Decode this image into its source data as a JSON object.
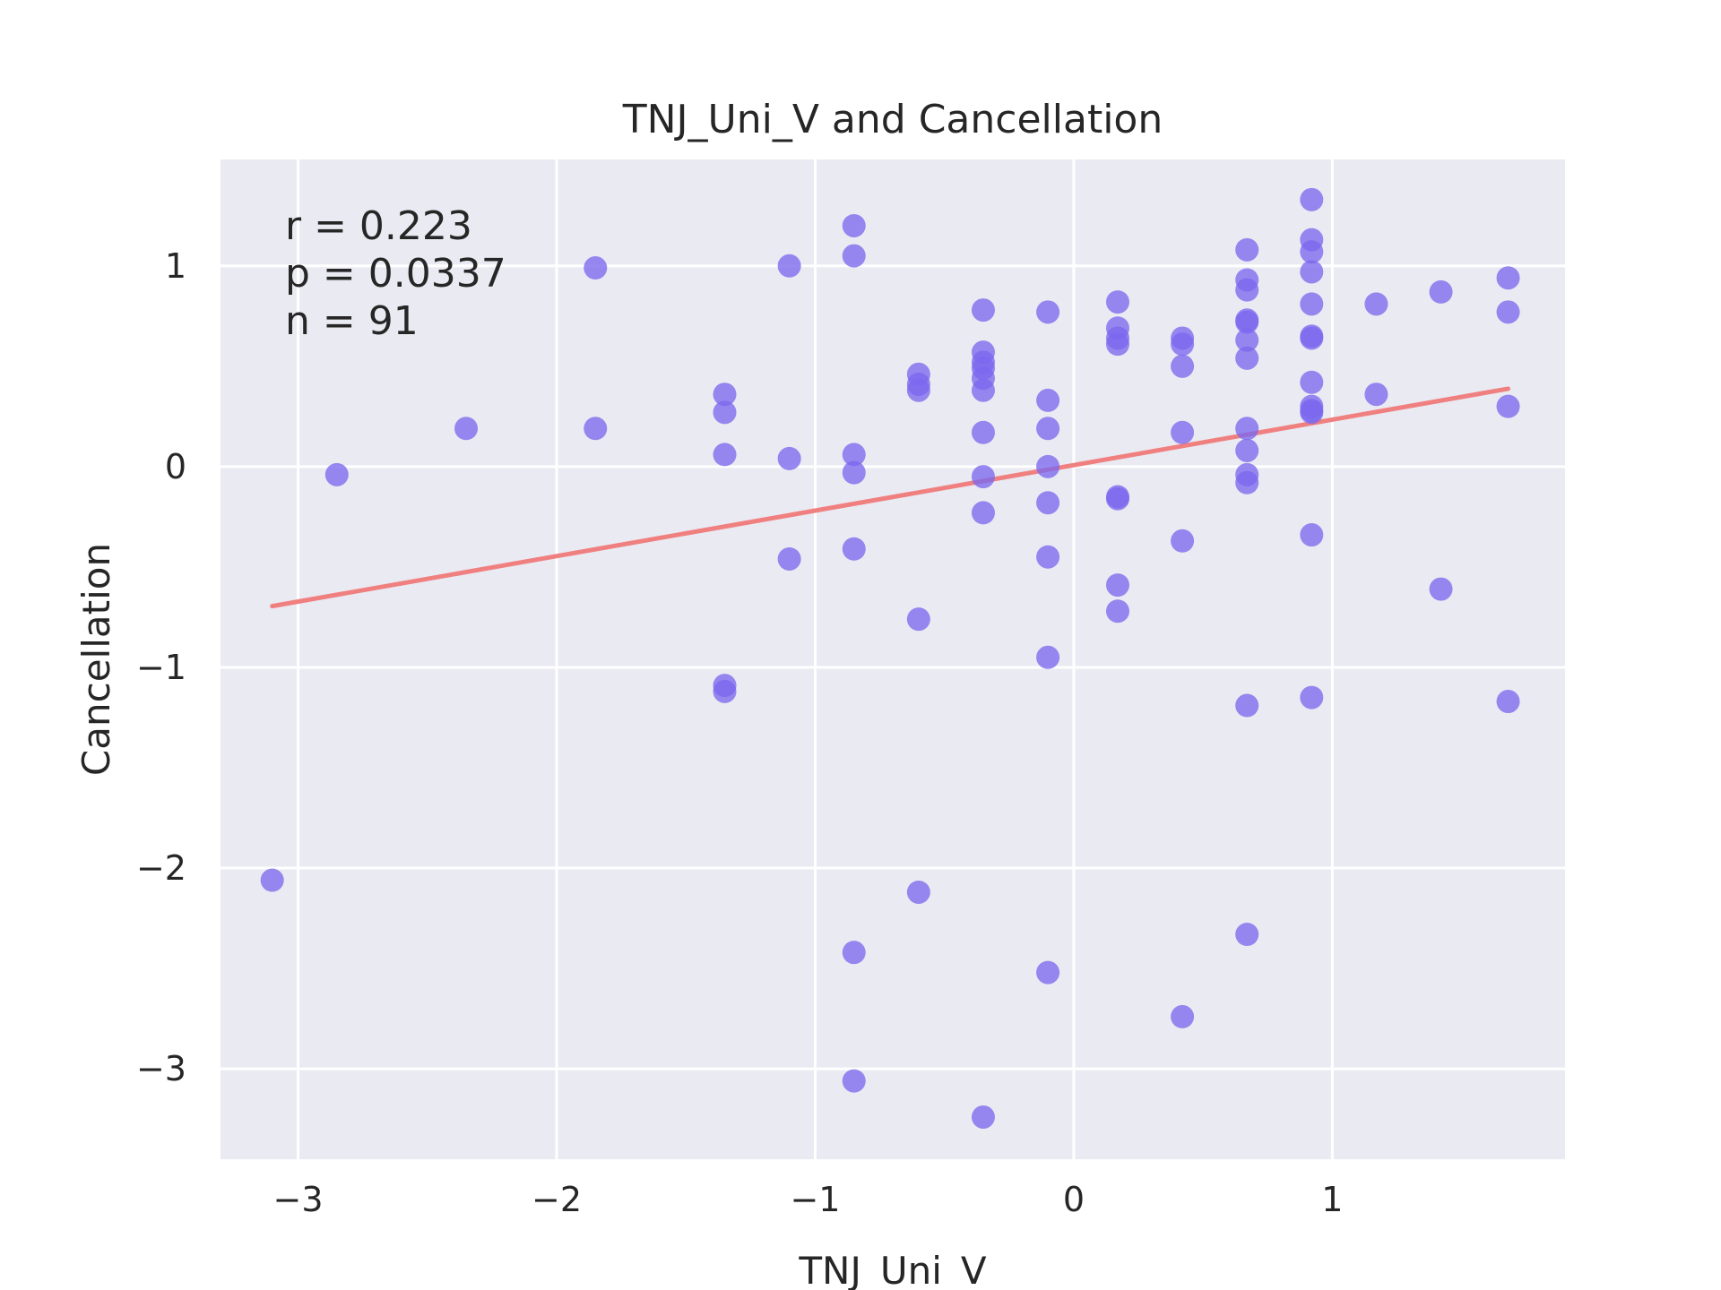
{
  "chart_data": {
    "type": "scatter",
    "title": "TNJ_Uni_V and Cancellation",
    "xlabel": "TNJ_Uni_V",
    "ylabel": "Cancellation",
    "xlim": [
      -3.3,
      1.9
    ],
    "ylim": [
      -3.45,
      1.53
    ],
    "xticks": [
      -3,
      -2,
      -1,
      0,
      1
    ],
    "yticks": [
      -3,
      -2,
      -1,
      0,
      1
    ],
    "xtick_labels": [
      "−3",
      "−2",
      "−1",
      "0",
      "1"
    ],
    "ytick_labels": [
      "−3",
      "−2",
      "−1",
      "0",
      "1"
    ],
    "grid": true,
    "annotations": [
      "r = 0.223",
      "p = 0.0337",
      "n = 91"
    ],
    "colors": {
      "points": "#7b68ee",
      "fit_line": "#f08080",
      "plot_bg": "#eaeaf2",
      "grid": "#ffffff"
    },
    "fit_line": {
      "x": [
        -3.1,
        1.68
      ],
      "y": [
        -0.695,
        0.388
      ]
    },
    "points": [
      {
        "x": -3.1,
        "y": -2.06
      },
      {
        "x": -2.85,
        "y": -0.04
      },
      {
        "x": -2.35,
        "y": 0.19
      },
      {
        "x": -1.85,
        "y": 0.99
      },
      {
        "x": -1.85,
        "y": 0.19
      },
      {
        "x": -1.35,
        "y": 0.36
      },
      {
        "x": -1.35,
        "y": 0.27
      },
      {
        "x": -1.35,
        "y": 0.06
      },
      {
        "x": -1.35,
        "y": -1.09
      },
      {
        "x": -1.35,
        "y": -1.12
      },
      {
        "x": -1.1,
        "y": 1.0
      },
      {
        "x": -1.1,
        "y": 0.04
      },
      {
        "x": -1.1,
        "y": -0.46
      },
      {
        "x": -0.85,
        "y": 1.2
      },
      {
        "x": -0.85,
        "y": 1.05
      },
      {
        "x": -0.85,
        "y": 0.06
      },
      {
        "x": -0.85,
        "y": -0.03
      },
      {
        "x": -0.85,
        "y": -0.41
      },
      {
        "x": -0.85,
        "y": -2.42
      },
      {
        "x": -0.85,
        "y": -3.06
      },
      {
        "x": -0.6,
        "y": 0.46
      },
      {
        "x": -0.6,
        "y": 0.41
      },
      {
        "x": -0.6,
        "y": 0.38
      },
      {
        "x": -0.6,
        "y": -0.76
      },
      {
        "x": -0.6,
        "y": -2.12
      },
      {
        "x": -0.35,
        "y": 0.78
      },
      {
        "x": -0.35,
        "y": 0.57
      },
      {
        "x": -0.35,
        "y": 0.52
      },
      {
        "x": -0.35,
        "y": 0.49
      },
      {
        "x": -0.35,
        "y": 0.44
      },
      {
        "x": -0.35,
        "y": 0.38
      },
      {
        "x": -0.35,
        "y": 0.17
      },
      {
        "x": -0.35,
        "y": -0.05
      },
      {
        "x": -0.35,
        "y": -0.23
      },
      {
        "x": -0.35,
        "y": -3.24
      },
      {
        "x": -0.1,
        "y": 0.77
      },
      {
        "x": -0.1,
        "y": 0.33
      },
      {
        "x": -0.1,
        "y": 0.19
      },
      {
        "x": -0.1,
        "y": 0.0
      },
      {
        "x": -0.1,
        "y": -0.18
      },
      {
        "x": -0.1,
        "y": -0.45
      },
      {
        "x": -0.1,
        "y": -0.95
      },
      {
        "x": -0.1,
        "y": -2.52
      },
      {
        "x": 0.17,
        "y": 0.82
      },
      {
        "x": 0.17,
        "y": 0.69
      },
      {
        "x": 0.17,
        "y": 0.64
      },
      {
        "x": 0.17,
        "y": 0.61
      },
      {
        "x": 0.17,
        "y": -0.15
      },
      {
        "x": 0.17,
        "y": -0.16
      },
      {
        "x": 0.17,
        "y": -0.59
      },
      {
        "x": 0.17,
        "y": -0.72
      },
      {
        "x": 0.42,
        "y": 0.64
      },
      {
        "x": 0.42,
        "y": 0.61
      },
      {
        "x": 0.42,
        "y": 0.5
      },
      {
        "x": 0.42,
        "y": 0.17
      },
      {
        "x": 0.42,
        "y": -0.37
      },
      {
        "x": 0.42,
        "y": -2.74
      },
      {
        "x": 0.67,
        "y": 1.08
      },
      {
        "x": 0.67,
        "y": 0.93
      },
      {
        "x": 0.67,
        "y": 0.88
      },
      {
        "x": 0.67,
        "y": 0.73
      },
      {
        "x": 0.67,
        "y": 0.72
      },
      {
        "x": 0.67,
        "y": 0.63
      },
      {
        "x": 0.67,
        "y": 0.54
      },
      {
        "x": 0.67,
        "y": 0.19
      },
      {
        "x": 0.67,
        "y": 0.08
      },
      {
        "x": 0.67,
        "y": -0.04
      },
      {
        "x": 0.67,
        "y": -0.08
      },
      {
        "x": 0.67,
        "y": -1.19
      },
      {
        "x": 0.67,
        "y": -2.33
      },
      {
        "x": 0.92,
        "y": 1.33
      },
      {
        "x": 0.92,
        "y": 1.13
      },
      {
        "x": 0.92,
        "y": 1.07
      },
      {
        "x": 0.92,
        "y": 0.97
      },
      {
        "x": 0.92,
        "y": 0.81
      },
      {
        "x": 0.92,
        "y": 0.65
      },
      {
        "x": 0.92,
        "y": 0.64
      },
      {
        "x": 0.92,
        "y": 0.42
      },
      {
        "x": 0.92,
        "y": 0.3
      },
      {
        "x": 0.92,
        "y": 0.28
      },
      {
        "x": 0.92,
        "y": 0.27
      },
      {
        "x": 0.92,
        "y": -0.34
      },
      {
        "x": 0.92,
        "y": -1.15
      },
      {
        "x": 1.17,
        "y": 0.81
      },
      {
        "x": 1.17,
        "y": 0.36
      },
      {
        "x": 1.42,
        "y": 0.87
      },
      {
        "x": 1.42,
        "y": -0.61
      },
      {
        "x": 1.68,
        "y": 0.94
      },
      {
        "x": 1.68,
        "y": 0.77
      },
      {
        "x": 1.68,
        "y": 0.3
      },
      {
        "x": 1.68,
        "y": -1.17
      }
    ]
  }
}
